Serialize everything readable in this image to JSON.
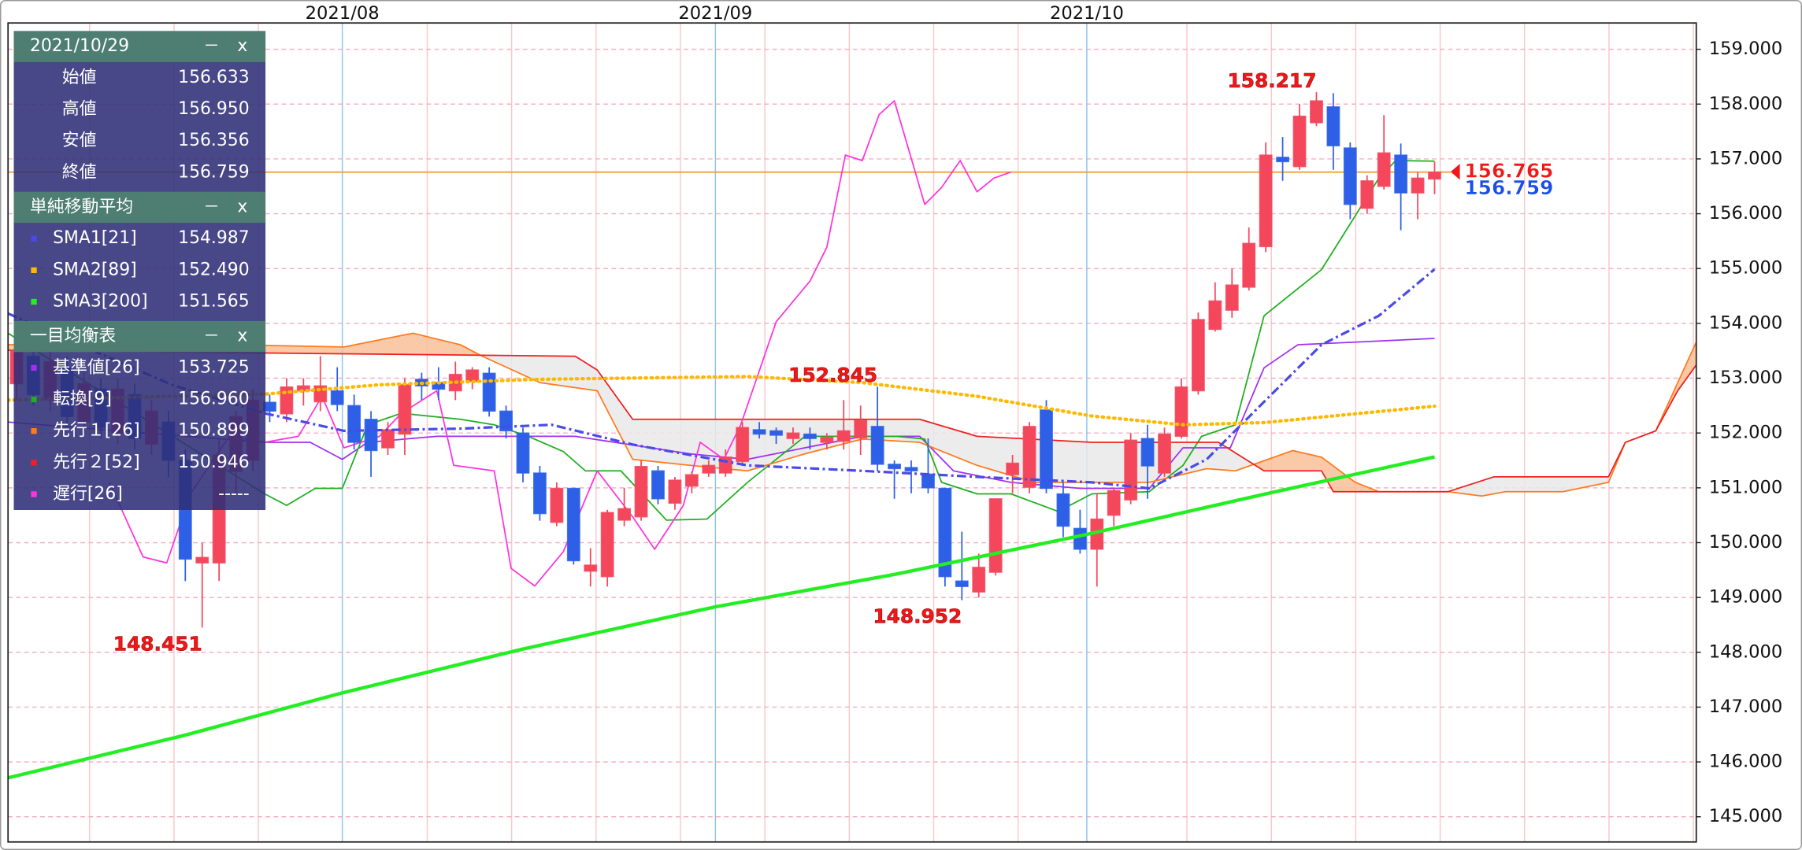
{
  "chart_data": {
    "type": "candlestick",
    "x": [
      0,
      1,
      2,
      3,
      4,
      5,
      6,
      7,
      8,
      9,
      10,
      11,
      12,
      13,
      14,
      15,
      16,
      17,
      18,
      19,
      20,
      21,
      22,
      23,
      24,
      25,
      26,
      27,
      28,
      29,
      30,
      31,
      32,
      33,
      34,
      35,
      36,
      37,
      38,
      39,
      40,
      41,
      42,
      43,
      44,
      45,
      46,
      47,
      48,
      49,
      50,
      51,
      52,
      53,
      54,
      55,
      56,
      57,
      58,
      59,
      60,
      61,
      62,
      63,
      64,
      65,
      66,
      67,
      68,
      69,
      70,
      71,
      72,
      73,
      74,
      75,
      76,
      77,
      78,
      79,
      80,
      81,
      82,
      83,
      84
    ],
    "open": [
      152.9,
      153.4,
      152.6,
      153.2,
      152.2,
      152.8,
      152.0,
      152.7,
      151.8,
      152.2,
      151.5,
      149.63,
      149.63,
      151.3,
      151.5,
      152.56,
      152.35,
      152.77,
      152.57,
      152.77,
      152.5,
      152.25,
      151.73,
      151.98,
      152.98,
      152.92,
      152.77,
      152.94,
      153.09,
      152.4,
      152.0,
      151.27,
      150.37,
      150.99,
      149.48,
      149.38,
      150.41,
      150.47,
      151.31,
      150.72,
      151.03,
      151.27,
      151.27,
      151.48,
      152.06,
      152.04,
      151.9,
      151.98,
      151.83,
      151.85,
      151.91,
      152.12,
      151.43,
      151.37,
      151.25,
      150.99,
      149.3,
      149.1,
      149.46,
      151.24,
      151.01,
      152.42,
      150.89,
      150.26,
      149.88,
      150.5,
      150.78,
      151.9,
      151.27,
      151.94,
      152.77,
      153.89,
      154.24,
      154.66,
      155.4,
      157.03,
      156.86,
      157.66,
      157.95,
      157.2,
      156.1,
      156.5,
      157.07,
      156.38,
      156.633
    ],
    "high": [
      153.8,
      153.6,
      153.5,
      153.4,
      153.1,
      153.0,
      153.0,
      152.9,
      152.6,
      152.4,
      151.7,
      150.0,
      151.9,
      152.4,
      152.8,
      152.7,
      153.0,
      153.0,
      153.4,
      153.2,
      152.7,
      152.4,
      152.2,
      153.0,
      153.1,
      153.2,
      153.3,
      153.2,
      153.2,
      152.5,
      152.1,
      151.4,
      151.1,
      151.0,
      149.9,
      150.6,
      151.0,
      151.5,
      151.4,
      151.2,
      151.3,
      151.5,
      151.7,
      152.2,
      152.2,
      152.1,
      152.1,
      152.1,
      152.0,
      152.6,
      152.5,
      152.845,
      151.5,
      151.5,
      151.9,
      151.0,
      150.2,
      149.8,
      150.8,
      151.6,
      152.2,
      152.6,
      151.1,
      150.6,
      150.9,
      151.0,
      152.0,
      152.15,
      152.1,
      153.0,
      154.2,
      154.75,
      155.0,
      155.75,
      157.3,
      157.4,
      158.0,
      158.217,
      158.2,
      157.3,
      156.7,
      157.8,
      157.28,
      156.76,
      156.95
    ],
    "low": [
      152.6,
      152.5,
      152.4,
      152.1,
      152.0,
      151.9,
      151.8,
      151.7,
      151.6,
      151.2,
      149.3,
      148.451,
      149.3,
      150.9,
      151.3,
      152.2,
      152.2,
      152.5,
      152.4,
      152.4,
      151.7,
      151.2,
      151.6,
      151.6,
      152.6,
      152.6,
      152.6,
      152.8,
      152.3,
      151.9,
      151.1,
      150.4,
      150.3,
      149.6,
      149.2,
      149.2,
      150.3,
      150.4,
      150.7,
      150.6,
      150.9,
      151.2,
      151.2,
      151.4,
      151.9,
      151.8,
      151.8,
      151.7,
      151.7,
      151.7,
      151.6,
      151.3,
      150.8,
      150.9,
      150.9,
      149.2,
      148.952,
      149.0,
      149.4,
      150.9,
      150.9,
      150.9,
      150.1,
      149.8,
      149.2,
      150.3,
      150.7,
      150.8,
      151.2,
      151.9,
      152.7,
      153.85,
      154.1,
      154.6,
      155.3,
      156.6,
      156.8,
      157.6,
      156.8,
      155.9,
      156.0,
      156.44,
      155.7,
      155.9,
      156.356
    ],
    "close": [
      153.5,
      152.7,
      153.3,
      152.3,
      152.9,
      152.1,
      152.8,
      151.9,
      152.4,
      151.5,
      149.7,
      149.73,
      151.6,
      152.3,
      152.6,
      152.4,
      152.84,
      152.86,
      152.86,
      152.52,
      151.83,
      151.68,
      152.06,
      152.88,
      152.86,
      152.8,
      153.07,
      153.15,
      152.4,
      152.04,
      151.27,
      150.53,
      150.99,
      149.67,
      149.59,
      150.55,
      150.62,
      151.39,
      150.8,
      151.14,
      151.24,
      151.41,
      151.56,
      152.1,
      151.98,
      151.96,
      152.0,
      151.9,
      151.92,
      152.04,
      152.23,
      151.43,
      151.35,
      151.31,
      151.0,
      149.38,
      149.2,
      149.55,
      150.8,
      151.45,
      152.12,
      150.99,
      150.3,
      149.88,
      150.43,
      150.95,
      151.87,
      151.4,
      151.98,
      152.84,
      154.07,
      154.41,
      154.7,
      155.46,
      157.07,
      156.95,
      157.78,
      158.06,
      157.24,
      156.17,
      156.6,
      157.11,
      156.38,
      156.65,
      156.759
    ],
    "up_color": "#f4475c",
    "down_color": "#2d60e6",
    "xlim": [
      -0.5,
      99.5
    ],
    "xticks": [
      {
        "value": 19.3,
        "label": "2021/08"
      },
      {
        "value": 41.4,
        "label": "2021/09"
      },
      {
        "value": 63.4,
        "label": "2021/10"
      }
    ],
    "ylim": [
      144.54,
      159.48
    ],
    "yticks": [
      {
        "value": 145,
        "label": "145.000"
      },
      {
        "value": 146,
        "label": "146.000"
      },
      {
        "value": 147,
        "label": "147.000"
      },
      {
        "value": 148,
        "label": "148.000"
      },
      {
        "value": 149,
        "label": "149.000"
      },
      {
        "value": 150,
        "label": "150.000"
      },
      {
        "value": 151,
        "label": "151.000"
      },
      {
        "value": 152,
        "label": "152.000"
      },
      {
        "value": 153,
        "label": "153.000"
      },
      {
        "value": 154,
        "label": "154.000"
      },
      {
        "value": 155,
        "label": "155.000"
      },
      {
        "value": 156,
        "label": "156.000"
      },
      {
        "value": 157,
        "label": "157.000"
      },
      {
        "value": 158,
        "label": "158.000"
      },
      {
        "value": 159,
        "label": "159.000"
      }
    ],
    "grid": true,
    "hline": {
      "value": 156.759,
      "color": "#f5a030"
    },
    "price_marks": [
      {
        "x": 77,
        "value": 158.217
      },
      {
        "x": 11,
        "value": 148.451
      },
      {
        "x": 56,
        "value": 148.952
      },
      {
        "x": 51,
        "value": 152.845
      }
    ],
    "price_mark_color": "#f01818",
    "price_tags": [
      {
        "value": 156.765,
        "color": "#f01818"
      },
      {
        "value": 156.759,
        "color": "#1a4ee8"
      }
    ],
    "panel_buttons": [
      "－",
      "x"
    ],
    "ohlc_panel": {
      "title": "2021/10/29",
      "rows": [
        {
          "label": "始値",
          "value": "156.633"
        },
        {
          "label": "高値",
          "value": "156.950"
        },
        {
          "label": "安値",
          "value": "156.356"
        },
        {
          "label": "終値",
          "value": "156.759"
        }
      ]
    },
    "indicator_groups": [
      {
        "title": "単純移動平均",
        "series": [
          {
            "name": "SMA1[21]",
            "color": "#4a4ae8",
            "style": "dash-dot",
            "last": "154.987",
            "x": [
              -0.5,
              9.2,
              14.7,
              19.4,
              26.3,
              31.7,
              36.5,
              43.3,
              50.1,
              56.9,
              63.7,
              67.1,
              70.5,
              73.9,
              77.3,
              80.7,
              84
            ],
            "values": [
              154.18,
              152.88,
              152.36,
              152.04,
              152.08,
              152.15,
              151.79,
              151.41,
              151.31,
              151.2,
              151.1,
              150.99,
              151.52,
              152.57,
              153.61,
              154.14,
              154.987
            ]
          },
          {
            "name": "SMA2[89]",
            "color": "#ffb800",
            "style": "dotted",
            "last": "152.490",
            "x": [
              -0.5,
              14.7,
              21.5,
              31.0,
              43.3,
              50.1,
              56.9,
              63.7,
              69.1,
              73.9,
              84
            ],
            "values": [
              152.6,
              152.71,
              152.88,
              152.98,
              153.03,
              152.92,
              152.67,
              152.31,
              152.15,
              152.19,
              152.49
            ]
          },
          {
            "name": "SMA3[200]",
            "color": "#22ee22",
            "style": "thick",
            "last": "151.565",
            "x": [
              -0.5,
              10,
              19.3,
              30,
              41.4,
              52,
              63.4,
              74,
              84
            ],
            "values": [
              145.71,
              146.49,
              147.26,
              148.06,
              148.83,
              149.42,
              150.15,
              150.89,
              151.565
            ]
          }
        ]
      },
      {
        "title": "一目均衡表",
        "cloud_colors": [
          "#f9bf98",
          "#e9e9e9"
        ],
        "series": [
          {
            "name": "基準値[26]",
            "color": "#a030f0",
            "style": "thin",
            "last": "153.725",
            "x": [
              -0.5,
              14.7,
              17.4,
              19.3,
              20.8,
              24.9,
              33.1,
              39.9,
              43.3,
              50.1,
              53.5,
              55.5,
              58.9,
              63.0,
              67.1,
              69.1,
              71.9,
              73.9,
              75.9,
              84
            ],
            "values": [
              152.2,
              151.83,
              151.83,
              151.52,
              151.83,
              151.94,
              151.94,
              151.62,
              151.52,
              151.94,
              151.94,
              151.31,
              151.1,
              150.99,
              150.99,
              151.73,
              151.73,
              153.19,
              153.61,
              153.725
            ]
          },
          {
            "name": "転換[9]",
            "color": "#1fae1f",
            "style": "thin",
            "last": "156.960",
            "x": [
              -0.5,
              14.7,
              16.0,
              17.7,
              19.3,
              20.8,
              22.8,
              26.3,
              28.3,
              30.3,
              32.4,
              33.7,
              35.8,
              38.5,
              40.9,
              43.3,
              46.7,
              49.4,
              52.1,
              53.8,
              54.8,
              56.9,
              58.9,
              61.7,
              63.7,
              67.1,
              69.1,
              70.2,
              72.2,
              73.9,
              77.3,
              80.7,
              81.7,
              84
            ],
            "values": [
              153.82,
              150.89,
              150.68,
              150.99,
              150.99,
              152.15,
              152.36,
              152.25,
              152.15,
              151.94,
              151.66,
              151.31,
              151.31,
              150.41,
              150.43,
              151.1,
              151.94,
              151.94,
              151.94,
              151.89,
              151.1,
              150.89,
              150.89,
              150.57,
              150.89,
              150.93,
              151.41,
              151.94,
              152.15,
              154.14,
              154.98,
              156.65,
              156.97,
              156.96
            ]
          },
          {
            "name": "先行１[26]",
            "color": "#ff7a20",
            "style": "thin",
            "last": "150.899",
            "x": [
              -0.5,
              12.6,
              19.4,
              22.8,
              23.5,
              26.3,
              27.6,
              31.0,
              34.4,
              36.5,
              39.9,
              43.3,
              46.7,
              50.1,
              53.5,
              56.9,
              60.3,
              63.7,
              67.1,
              70.5,
              72.2,
              75.6,
              77.3,
              79.3,
              80.7,
              84.8,
              86.8,
              88.2,
              91.6,
              94.3,
              95.3,
              97.1,
              99.5
            ],
            "values": [
              153.61,
              153.61,
              153.57,
              153.78,
              153.82,
              153.61,
              153.4,
              152.92,
              152.77,
              151.52,
              151.41,
              151.31,
              151.62,
              151.89,
              151.83,
              151.41,
              151.1,
              151.1,
              151.1,
              151.35,
              151.31,
              151.68,
              151.56,
              151.1,
              150.93,
              150.93,
              150.85,
              150.93,
              150.93,
              151.1,
              151.83,
              152.04,
              153.66
            ]
          },
          {
            "name": "先行２[52]",
            "color": "#ee2020",
            "style": "thin",
            "last": "150.946",
            "x": [
              -0.5,
              33.1,
              34.4,
              36.5,
              53.5,
              56.9,
              63.7,
              67.1,
              71.2,
              73.9,
              77.3,
              78.0,
              84.8,
              87.5,
              94.3,
              95.3,
              97.1,
              98.4,
              99.5
            ],
            "values": [
              153.51,
              153.4,
              153.15,
              152.25,
              152.25,
              151.94,
              151.83,
              151.83,
              151.83,
              151.31,
              151.31,
              150.93,
              150.93,
              151.2,
              151.2,
              151.83,
              152.04,
              152.77,
              153.24
            ]
          },
          {
            "name": "遅行[26]",
            "color": "#ff33dd",
            "style": "thin",
            "last": "-----",
            "x": [
              5.5,
              7.5,
              8.9,
              10.3,
              12.6,
              14.7,
              16.7,
              18.1,
              19.4,
              21.5,
              22.8,
              24.9,
              25.9,
              28.3,
              29.3,
              30.7,
              32.4,
              34.4,
              36.5,
              37.8,
              39.5,
              40.5,
              41.9,
              42.9,
              45.0,
              47.0,
              48.0,
              49.1,
              50.1,
              51.1,
              52.0,
              53.8,
              54.8,
              55.9,
              56.9,
              57.9,
              58.9
            ],
            "values": [
              151.1,
              149.74,
              149.63,
              150.89,
              151.94,
              151.83,
              151.94,
              152.67,
              151.73,
              151.94,
              152.36,
              152.77,
              151.41,
              151.31,
              149.53,
              149.21,
              149.84,
              151.31,
              150.47,
              149.88,
              150.68,
              151.83,
              151.52,
              152.15,
              154.03,
              154.77,
              155.39,
              157.07,
              156.97,
              157.81,
              158.06,
              156.17,
              156.48,
              156.97,
              156.4,
              156.65,
              156.76
            ]
          }
        ]
      }
    ]
  }
}
